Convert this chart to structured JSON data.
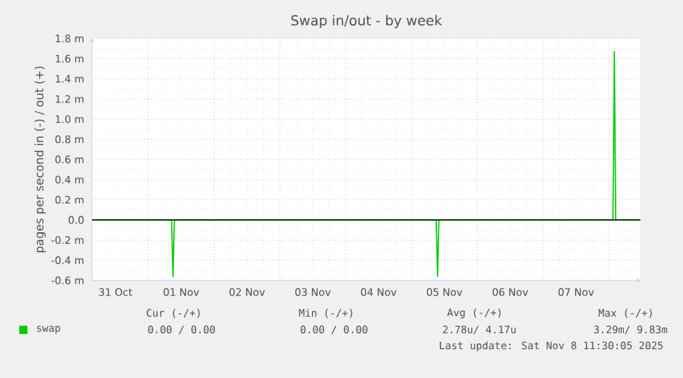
{
  "chart_data": {
    "type": "line",
    "title": "Swap in/out - by week",
    "ylabel": "pages per second in (-) / out (+)",
    "series": [
      {
        "name": "swap",
        "color": "#00cc00",
        "x": [
          "2025-10-31T03:30",
          "2025-11-01T08:30",
          "2025-11-01T09:00",
          "2025-11-01T09:30",
          "2025-11-05T09:00",
          "2025-11-05T09:30",
          "2025-11-05T10:00",
          "2025-11-08T01:30",
          "2025-11-08T02:00",
          "2025-11-08T02:30",
          "2025-11-08T11:30"
        ],
        "values": [
          0,
          0,
          -0.56,
          0,
          0,
          -0.56,
          0,
          0,
          1.67,
          0,
          0
        ]
      }
    ],
    "xlim": [
      "2025-10-31T03:30",
      "2025-11-08T11:30"
    ],
    "xticks": [
      {
        "value": "2025-10-31T12:00",
        "label": "31 Oct"
      },
      {
        "value": "2025-11-01T12:00",
        "label": "01 Nov"
      },
      {
        "value": "2025-11-02T12:00",
        "label": "02 Nov"
      },
      {
        "value": "2025-11-03T12:00",
        "label": "03 Nov"
      },
      {
        "value": "2025-11-04T12:00",
        "label": "04 Nov"
      },
      {
        "value": "2025-11-05T12:00",
        "label": "05 Nov"
      },
      {
        "value": "2025-11-06T12:00",
        "label": "06 Nov"
      },
      {
        "value": "2025-11-07T12:00",
        "label": "07 Nov"
      },
      {
        "value": "2025-11-01T00:00",
        "label": null
      },
      {
        "value": "2025-11-02T00:00",
        "label": null
      },
      {
        "value": "2025-11-03T00:00",
        "label": null
      },
      {
        "value": "2025-11-04T00:00",
        "label": null
      },
      {
        "value": "2025-11-05T00:00",
        "label": null
      },
      {
        "value": "2025-11-06T00:00",
        "label": null
      },
      {
        "value": "2025-11-07T00:00",
        "label": null
      },
      {
        "value": "2025-11-08T00:00",
        "label": null
      }
    ],
    "ylim": [
      -0.6,
      1.8
    ],
    "yticks": [
      {
        "value": -0.6,
        "label": "-0.6 m"
      },
      {
        "value": -0.4,
        "label": "-0.4 m"
      },
      {
        "value": -0.2,
        "label": "-0.2 m"
      },
      {
        "value": 0,
        "label": "0.0"
      },
      {
        "value": 0.2,
        "label": "0.2 m"
      },
      {
        "value": 0.4,
        "label": "0.4 m"
      },
      {
        "value": 0.6,
        "label": "0.6 m"
      },
      {
        "value": 0.8,
        "label": "0.8 m"
      },
      {
        "value": 1.0,
        "label": "1.0 m"
      },
      {
        "value": 1.2,
        "label": "1.2 m"
      },
      {
        "value": 1.4,
        "label": "1.4 m"
      },
      {
        "value": 1.6,
        "label": "1.6 m"
      },
      {
        "value": 1.8,
        "label": "1.8 m"
      }
    ],
    "ref_lines": [
      {
        "axis": "y",
        "value": 0,
        "color": "#000000"
      }
    ],
    "grid": true,
    "legend": "bottom left",
    "marker": "none",
    "line_style": "solid",
    "annotations": [
      "Cur (-/+)",
      "Min (-/+)",
      "Avg (-/+)",
      "Max (-/+)",
      "0.00 /   0.00",
      "0.00 /   0.00",
      "2.78u/   4.17u",
      "3.29m/   9.83m",
      "Last update: Sat Nov  8 11:30:05 2025"
    ]
  }
}
